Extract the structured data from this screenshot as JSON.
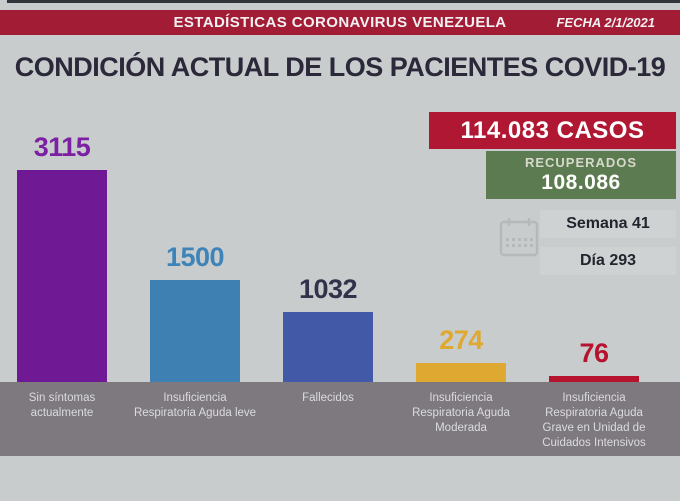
{
  "header": {
    "banner_title": "ESTADÍSTICAS CORONAVIRUS VENEZUELA",
    "date_label": "FECHA 2/1/2021",
    "banner_color": "#a31c36"
  },
  "title": "CONDICIÓN ACTUAL DE LOS PACIENTES COVID-19",
  "stats": {
    "cases": "114.083 CASOS",
    "cases_bg": "#b01732",
    "recovered_label": "RECUPERADOS",
    "recovered_value": "108.086",
    "recovered_bg": "#5d7b50",
    "week": "Semana 41",
    "day": "Día 293",
    "calendar_icon": "calendar-icon",
    "icon_color": "#b2b6b8"
  },
  "chart_data": {
    "type": "bar",
    "title": "CONDICIÓN ACTUAL DE LOS PACIENTES COVID-19",
    "categories": [
      "Sin síntomas actualmente",
      "Insuficiencia Respiratoria Aguda leve",
      "Fallecidos",
      "Insuficiencia Respiratoria Aguda Moderada",
      "Insuficiencia Respiratoria Aguda Grave en Unidad de Cuidados Intensivos"
    ],
    "category_lines": [
      [
        "Sin síntomas",
        "actualmente"
      ],
      [
        "Insuficiencia",
        "Respiratoria Aguda leve"
      ],
      [
        "Fallecidos"
      ],
      [
        "Insuficiencia",
        "Respiratoria Aguda",
        "Moderada"
      ],
      [
        "Insuficiencia",
        "Respiratoria Aguda",
        "Grave en Unidad de",
        "Cuidados Intensivos"
      ]
    ],
    "values": [
      3115,
      1500,
      1032,
      274,
      76
    ],
    "bar_colors": [
      "#701995",
      "#3e80b2",
      "#4159a7",
      "#dfa831",
      "#b5132e"
    ],
    "value_label_colors": [
      "#7c1fa2",
      "#3e84b8",
      "#32324a",
      "#dfa831",
      "#b5132e"
    ],
    "ylim": [
      0,
      3115
    ],
    "grid": false,
    "legend": false,
    "xlabel": "",
    "ylabel": ""
  }
}
